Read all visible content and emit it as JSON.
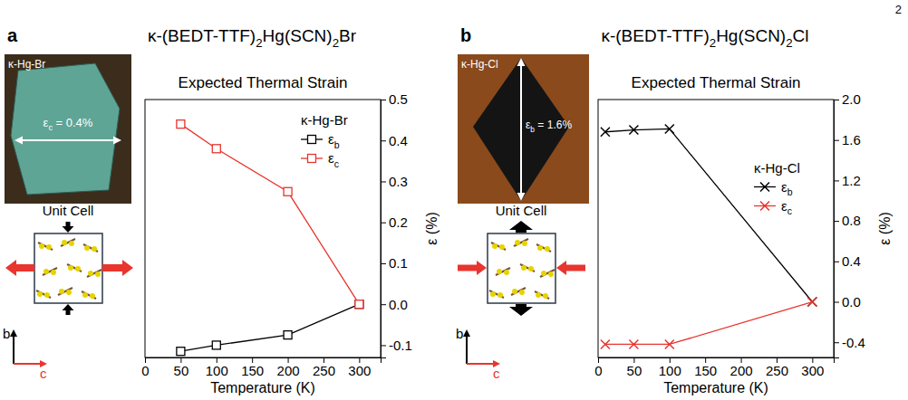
{
  "page_number": "2",
  "panels": [
    {
      "letter": "a",
      "title": "κ-(BEDT-TTF)2Hg(SCN)2Br",
      "photo": {
        "label": "κ-Hg-Br",
        "annotation": "εc = 0.4%"
      },
      "unit_cell": {
        "label": "Unit Cell",
        "axes": [
          "b",
          "c"
        ]
      }
    },
    {
      "letter": "b",
      "title": "κ-(BEDT-TTF)2Hg(SCN)2Cl",
      "photo": {
        "label": "κ-Hg-Cl",
        "annotation": "εb = 1.6%"
      },
      "unit_cell": {
        "label": "Unit Cell",
        "axes": [
          "b",
          "c"
        ]
      }
    }
  ],
  "chart_data": [
    {
      "type": "line",
      "title": "Expected Thermal Strain",
      "x_label": "Temperature (K)",
      "y_label": "ε (%)",
      "legend_title": "κ-Hg-Br",
      "legend": "upper right",
      "grid": false,
      "x": [
        50,
        100,
        200,
        300
      ],
      "xlim": [
        0,
        330
      ],
      "xticks": [
        0,
        50,
        100,
        150,
        200,
        250,
        300
      ],
      "ylim": [
        -0.13,
        0.5
      ],
      "yticks": [
        -0.1,
        {
          "value": 0,
          "label": "0.0"
        },
        0.1,
        0.2,
        0.3,
        0.4,
        0.5
      ],
      "series": [
        {
          "name": "εb",
          "color": "#000000",
          "marker": "square",
          "line_style": "solid",
          "values": [
            -0.115,
            -0.1,
            -0.075,
            0
          ]
        },
        {
          "name": "εc",
          "color": "#e8352e",
          "marker": "square",
          "line_style": "solid",
          "values": [
            0.44,
            0.38,
            0.275,
            0
          ]
        }
      ]
    },
    {
      "type": "line",
      "title": "Expected Thermal Strain",
      "x_label": "Temperature (K)",
      "y_label": "ε (%)",
      "legend_title": "κ-Hg-Cl",
      "legend": "right",
      "grid": false,
      "x": [
        10,
        50,
        100,
        300
      ],
      "xlim": [
        0,
        330
      ],
      "xticks": [
        0,
        50,
        100,
        150,
        200,
        250,
        300
      ],
      "ylim": [
        -0.55,
        2.0
      ],
      "yticks": [
        -0.4,
        {
          "value": 0,
          "label": "0.0"
        },
        0.4,
        0.8,
        1.2,
        1.6,
        {
          "value": 2,
          "label": "2.0"
        }
      ],
      "series": [
        {
          "name": "εb",
          "color": "#000000",
          "marker": "x",
          "line_style": "solid",
          "values": [
            1.68,
            1.7,
            1.71,
            0
          ]
        },
        {
          "name": "εc",
          "color": "#e8352e",
          "marker": "x",
          "line_style": "solid",
          "values": [
            -0.42,
            -0.42,
            -0.42,
            0
          ]
        }
      ]
    }
  ]
}
